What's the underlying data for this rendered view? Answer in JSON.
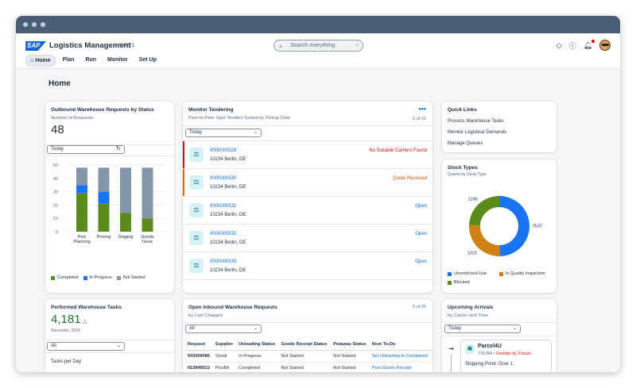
{
  "shell": {
    "logo": "SAP",
    "title": "Logistics Management",
    "subtitle": "WH01",
    "search_placeholder": "Search everything"
  },
  "nav": [
    "Home",
    "Plan",
    "Run",
    "Monitor",
    "Set Up"
  ],
  "page_title": "Home",
  "outbound": {
    "title": "Outbound Warehouse Requests by Status",
    "subtitle": "Number of Requests",
    "count": "48",
    "filter": "Today",
    "chart_data": {
      "type": "bar",
      "stacked": true,
      "categories": [
        "Pick Planning",
        "Picking",
        "Staging",
        "Goods Issue"
      ],
      "ylim": [
        0,
        50
      ],
      "yticks": [
        0,
        10,
        20,
        30,
        40,
        50
      ],
      "series": [
        {
          "name": "Completed",
          "color": "#5b8c1b",
          "values": [
            29,
            21,
            14,
            10
          ]
        },
        {
          "name": "In Progress",
          "color": "#1874f0",
          "values": [
            6,
            9,
            0,
            0
          ]
        },
        {
          "name": "Not Started",
          "color": "#8396a8",
          "values": [
            13,
            18,
            34,
            38
          ]
        }
      ]
    }
  },
  "tendering": {
    "title": "Monitor Tendering",
    "subtitle": "Peer-to-Peer Spot Tenders Sorted by Pickup Date",
    "count": "5 of 10",
    "filter": "Today",
    "rows": [
      {
        "id": "0000000529",
        "addr": "10234 Berlin, DE",
        "status": "No Suitable Carriers Found",
        "color": "#d20a0a",
        "bar": "#d20a0a"
      },
      {
        "id": "0000000530",
        "addr": "10234 Berlin, DE",
        "status": "Quote Received",
        "color": "#c35500",
        "bar": "#e76500"
      },
      {
        "id": "0000000531",
        "addr": "10234 Berlin, DE",
        "status": "Open",
        "color": "#0a6ed1",
        "bar": ""
      },
      {
        "id": "0000000532",
        "addr": "10234 Berlin, DE",
        "status": "Open",
        "color": "#0a6ed1",
        "bar": ""
      },
      {
        "id": "0000000533",
        "addr": "10234 Berlin, DE",
        "status": "Open",
        "color": "#0a6ed1",
        "bar": ""
      }
    ]
  },
  "quicklinks": {
    "title": "Quick Links",
    "items": [
      "Process Warehouse Tasks",
      "Monitor Logistical Demands",
      "Manage Queues"
    ]
  },
  "stock": {
    "title": "Stock Types",
    "subtitle": "Quants by Stock Type",
    "chart_data": {
      "type": "pie",
      "donut": true,
      "slices": [
        {
          "name": "Unrestricted-Use",
          "value": 2537,
          "color": "#1874f0"
        },
        {
          "name": "In Quality Inspection",
          "value": 1323,
          "color": "#d08014"
        },
        {
          "name": "Blocked",
          "value": 1245,
          "color": "#5b8c1b"
        }
      ]
    }
  },
  "performed": {
    "title": "Performed Warehouse Tasks",
    "value": "4,181",
    "period": "December, 2024",
    "filter": "All",
    "sub": "Tasks per Day"
  },
  "inbound": {
    "title": "Open Inbound Warehouse Requests",
    "subtitle": "by Last Changes",
    "count": "5 of 20",
    "filter": "All",
    "columns": [
      "Request",
      "Supplier",
      "Unloading Status",
      "Goods Receipt Status",
      "Putaway Status",
      "Next To-Do"
    ],
    "rows": [
      [
        "500009086",
        "Sorali",
        "In Progress",
        "Not Started",
        "Not Started",
        "Set Unloading to Completed"
      ],
      [
        "653849023",
        "PicoBit",
        "Completed",
        "Not Started",
        "Not Started",
        "Post Goods Receipt"
      ]
    ]
  },
  "arrivals": {
    "title": "Upcoming Arrivals",
    "subtitle": "by Carrier and Time",
    "filter": "Today",
    "carrier": "Parcel4U",
    "time": "7:00 AM",
    "overdue": "Overdue by 3 hours",
    "shipping": "Shipping Point: Door 1"
  }
}
